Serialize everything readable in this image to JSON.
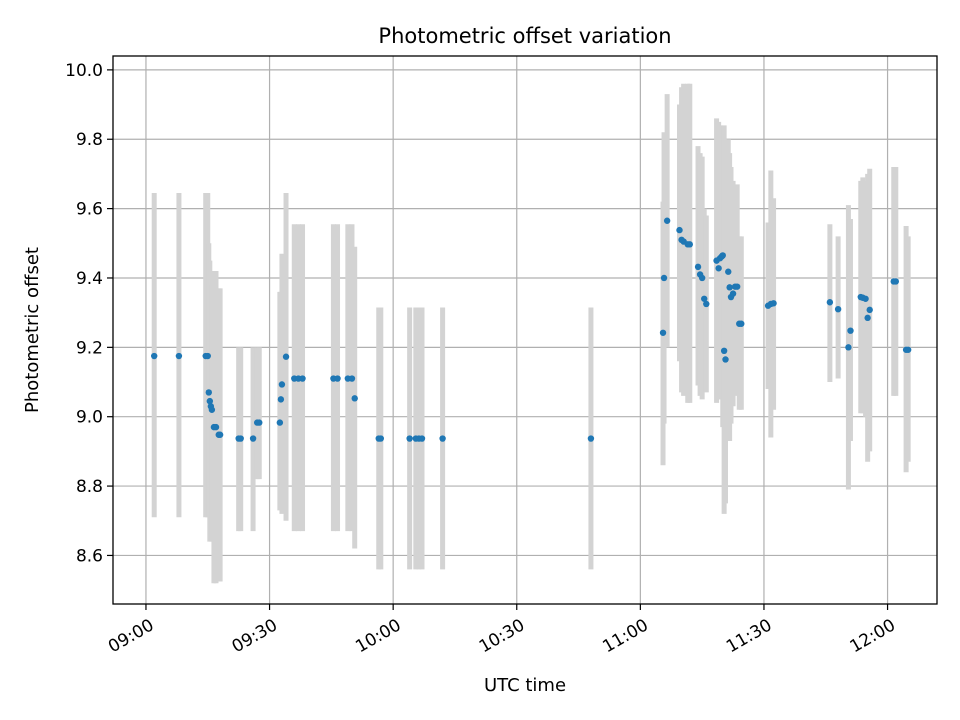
{
  "chart_data": {
    "type": "scatter",
    "title": "Photometric offset variation",
    "xlabel": "UTC time",
    "ylabel": "Photometric offset",
    "x_unit": "UTC time (HH:MM)",
    "xlim": [
      "08:52",
      "12:12"
    ],
    "ylim": [
      8.46,
      10.04
    ],
    "x_ticks": [
      "09:00",
      "09:30",
      "10:00",
      "10:30",
      "11:00",
      "11:30",
      "12:00"
    ],
    "y_ticks": [
      "8.6",
      "8.8",
      "9.0",
      "9.2",
      "9.4",
      "9.6",
      "9.8",
      "10.0"
    ],
    "grid": true,
    "colors": {
      "points": "#1f77b4",
      "errorbars": "#d3d3d3",
      "grid": "#b0b0b0",
      "axes": "#000000"
    },
    "series": [
      {
        "points": [
          {
            "x": "09:02",
            "y": 9.175,
            "lo": 8.71,
            "hi": 9.645
          },
          {
            "x": "09:08",
            "y": 9.175,
            "lo": 8.71,
            "hi": 9.645
          },
          {
            "x": "09:14:30",
            "y": 9.175,
            "lo": 8.71,
            "hi": 9.645
          },
          {
            "x": "09:15",
            "y": 9.175,
            "lo": 8.71,
            "hi": 9.645
          },
          {
            "x": "09:15:15",
            "y": 9.07,
            "lo": 8.71,
            "hi": 9.5
          },
          {
            "x": "09:15:30",
            "y": 9.045,
            "lo": 8.64,
            "hi": 9.45
          },
          {
            "x": "09:15:45",
            "y": 9.03,
            "lo": 8.7,
            "hi": 9.4
          },
          {
            "x": "09:16",
            "y": 9.02,
            "lo": 8.64,
            "hi": 9.38
          },
          {
            "x": "09:16:30",
            "y": 8.97,
            "lo": 8.52,
            "hi": 9.42
          },
          {
            "x": "09:17",
            "y": 8.97,
            "lo": 8.52,
            "hi": 9.42
          },
          {
            "x": "09:17:40",
            "y": 8.948,
            "lo": 8.525,
            "hi": 9.37
          },
          {
            "x": "09:18",
            "y": 8.948,
            "lo": 8.525,
            "hi": 9.37
          },
          {
            "x": "09:22:30",
            "y": 8.937,
            "lo": 8.67,
            "hi": 9.2
          },
          {
            "x": "09:23",
            "y": 8.937,
            "lo": 8.67,
            "hi": 9.2
          },
          {
            "x": "09:26",
            "y": 8.937,
            "lo": 8.67,
            "hi": 9.2
          },
          {
            "x": "09:27",
            "y": 8.983,
            "lo": 8.82,
            "hi": 9.2
          },
          {
            "x": "09:27:30",
            "y": 8.983,
            "lo": 8.82,
            "hi": 9.2
          },
          {
            "x": "09:32:30",
            "y": 8.983,
            "lo": 8.73,
            "hi": 9.36
          },
          {
            "x": "09:32:45",
            "y": 9.05,
            "lo": 8.74,
            "hi": 9.36
          },
          {
            "x": "09:33",
            "y": 9.093,
            "lo": 8.72,
            "hi": 9.47
          },
          {
            "x": "09:34",
            "y": 9.173,
            "lo": 8.7,
            "hi": 9.645
          },
          {
            "x": "09:36",
            "y": 9.11,
            "lo": 8.67,
            "hi": 9.555
          },
          {
            "x": "09:37",
            "y": 9.11,
            "lo": 8.67,
            "hi": 9.555
          },
          {
            "x": "09:38",
            "y": 9.11,
            "lo": 8.67,
            "hi": 9.555
          },
          {
            "x": "09:45:30",
            "y": 9.11,
            "lo": 8.67,
            "hi": 9.555
          },
          {
            "x": "09:46:30",
            "y": 9.11,
            "lo": 8.67,
            "hi": 9.555
          },
          {
            "x": "09:49",
            "y": 9.11,
            "lo": 8.67,
            "hi": 9.555
          },
          {
            "x": "09:50",
            "y": 9.11,
            "lo": 8.67,
            "hi": 9.555
          },
          {
            "x": "09:50:40",
            "y": 9.053,
            "lo": 8.62,
            "hi": 9.49
          },
          {
            "x": "09:56:30",
            "y": 8.937,
            "lo": 8.56,
            "hi": 9.315
          },
          {
            "x": "09:57",
            "y": 8.937,
            "lo": 8.56,
            "hi": 9.315
          },
          {
            "x": "10:04",
            "y": 8.937,
            "lo": 8.56,
            "hi": 9.315
          },
          {
            "x": "10:05:30",
            "y": 8.937,
            "lo": 8.56,
            "hi": 9.315
          },
          {
            "x": "10:06:15",
            "y": 8.937,
            "lo": 8.56,
            "hi": 9.315
          },
          {
            "x": "10:07",
            "y": 8.937,
            "lo": 8.56,
            "hi": 9.315
          },
          {
            "x": "10:12",
            "y": 8.937,
            "lo": 8.56,
            "hi": 9.315
          },
          {
            "x": "10:48",
            "y": 8.937,
            "lo": 8.56,
            "hi": 9.315
          },
          {
            "x": "11:05:30",
            "y": 9.242,
            "lo": 8.86,
            "hi": 9.62
          },
          {
            "x": "11:05:45",
            "y": 9.4,
            "lo": 8.98,
            "hi": 9.82
          },
          {
            "x": "11:06:30",
            "y": 9.565,
            "lo": 9.2,
            "hi": 9.93
          },
          {
            "x": "11:09:30",
            "y": 9.538,
            "lo": 9.16,
            "hi": 9.9
          },
          {
            "x": "11:10",
            "y": 9.51,
            "lo": 9.07,
            "hi": 9.95
          },
          {
            "x": "11:10:30",
            "y": 9.505,
            "lo": 9.06,
            "hi": 9.96
          },
          {
            "x": "11:11:30",
            "y": 9.497,
            "lo": 9.04,
            "hi": 9.96
          },
          {
            "x": "11:12",
            "y": 9.497,
            "lo": 9.04,
            "hi": 9.96
          },
          {
            "x": "11:14",
            "y": 9.432,
            "lo": 9.09,
            "hi": 9.78
          },
          {
            "x": "11:14:30",
            "y": 9.41,
            "lo": 9.06,
            "hi": 9.76
          },
          {
            "x": "11:15",
            "y": 9.4,
            "lo": 9.05,
            "hi": 9.75
          },
          {
            "x": "11:15:30",
            "y": 9.34,
            "lo": 9.08,
            "hi": 9.6
          },
          {
            "x": "11:16",
            "y": 9.325,
            "lo": 9.07,
            "hi": 9.58
          },
          {
            "x": "11:18:30",
            "y": 9.45,
            "lo": 9.04,
            "hi": 9.86
          },
          {
            "x": "11:19",
            "y": 9.428,
            "lo": 9.1,
            "hi": 9.85
          },
          {
            "x": "11:19:20",
            "y": 9.457,
            "lo": 9.05,
            "hi": 9.84
          },
          {
            "x": "11:19:45",
            "y": 9.462,
            "lo": 9.05,
            "hi": 9.83
          },
          {
            "x": "11:20",
            "y": 9.465,
            "lo": 8.97,
            "hi": 9.82
          },
          {
            "x": "11:20:20",
            "y": 9.19,
            "lo": 8.72,
            "hi": 9.84
          },
          {
            "x": "11:20:40",
            "y": 9.165,
            "lo": 8.75,
            "hi": 9.78
          },
          {
            "x": "11:21:20",
            "y": 9.418,
            "lo": 8.97,
            "hi": 9.8
          },
          {
            "x": "11:21:40",
            "y": 9.373,
            "lo": 8.93,
            "hi": 9.76
          },
          {
            "x": "11:22",
            "y": 9.345,
            "lo": 8.98,
            "hi": 9.72
          },
          {
            "x": "11:22:30",
            "y": 9.355,
            "lo": 9.03,
            "hi": 9.68
          },
          {
            "x": "11:23",
            "y": 9.375,
            "lo": 9.09,
            "hi": 9.66
          },
          {
            "x": "11:23:30",
            "y": 9.375,
            "lo": 9.06,
            "hi": 9.67
          },
          {
            "x": "11:24",
            "y": 9.268,
            "lo": 9.02,
            "hi": 9.52
          },
          {
            "x": "11:24:30",
            "y": 9.268,
            "lo": 9.02,
            "hi": 9.52
          },
          {
            "x": "11:31",
            "y": 9.32,
            "lo": 9.08,
            "hi": 9.56
          },
          {
            "x": "11:31:40",
            "y": 9.325,
            "lo": 8.94,
            "hi": 9.71
          },
          {
            "x": "11:32:20",
            "y": 9.327,
            "lo": 9.02,
            "hi": 9.63
          },
          {
            "x": "11:46",
            "y": 9.33,
            "lo": 9.1,
            "hi": 9.555
          },
          {
            "x": "11:48",
            "y": 9.31,
            "lo": 9.11,
            "hi": 9.52
          },
          {
            "x": "11:50:30",
            "y": 9.2,
            "lo": 8.79,
            "hi": 9.61
          },
          {
            "x": "11:51",
            "y": 9.248,
            "lo": 8.93,
            "hi": 9.57
          },
          {
            "x": "11:53:30",
            "y": 9.345,
            "lo": 9.01,
            "hi": 9.68
          },
          {
            "x": "11:54",
            "y": 9.343,
            "lo": 9.01,
            "hi": 9.69
          },
          {
            "x": "11:54:40",
            "y": 9.34,
            "lo": 9.0,
            "hi": 9.68
          },
          {
            "x": "11:55:10",
            "y": 9.285,
            "lo": 8.87,
            "hi": 9.7
          },
          {
            "x": "11:55:40",
            "y": 9.308,
            "lo": 8.9,
            "hi": 9.715
          },
          {
            "x": "12:01:30",
            "y": 9.39,
            "lo": 9.06,
            "hi": 9.72
          },
          {
            "x": "12:02",
            "y": 9.39,
            "lo": 9.06,
            "hi": 9.72
          },
          {
            "x": "12:04:30",
            "y": 9.193,
            "lo": 8.84,
            "hi": 9.55
          },
          {
            "x": "12:05",
            "y": 9.193,
            "lo": 8.87,
            "hi": 9.52
          }
        ]
      }
    ]
  }
}
